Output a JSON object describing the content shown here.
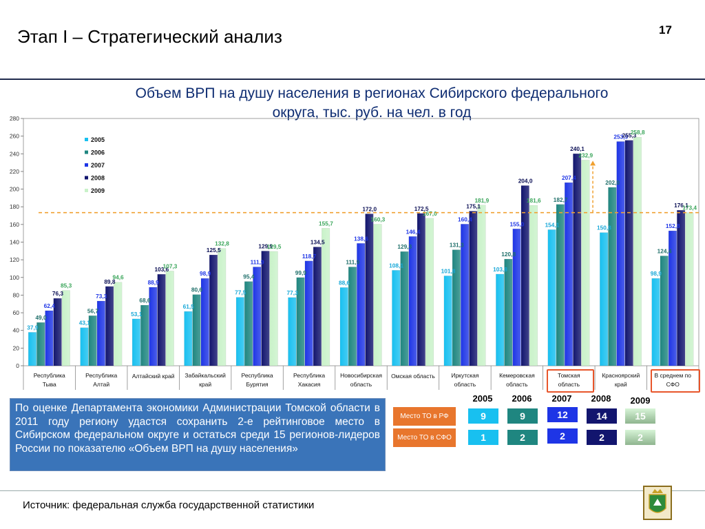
{
  "slide": {
    "title": "Этап I – Стратегический анализ",
    "page_number": "17",
    "source": "Источник: федеральная служба государственной статистики"
  },
  "chart_data": {
    "type": "bar",
    "title_line1": "Объем ВРП на душу населения в регионах Сибирского федерального",
    "title_line2": "округа, тыс. руб. на чел. в год",
    "categories": [
      [
        "Республика",
        "Тыва"
      ],
      [
        "Республика",
        "Алтай"
      ],
      [
        "Алтайский край"
      ],
      [
        "Забайкальский",
        "край"
      ],
      [
        "Республика",
        "Бурятия"
      ],
      [
        "Республика",
        "Хакасия"
      ],
      [
        "Новосибирская",
        "область"
      ],
      [
        "Омская область"
      ],
      [
        "Иркутская",
        "область"
      ],
      [
        "Кемеровская",
        "область"
      ],
      [
        "Томская",
        "область"
      ],
      [
        "Красноярский",
        "край"
      ],
      [
        "В среднем по",
        "СФО"
      ]
    ],
    "series": [
      {
        "name": "2005",
        "color": "#18c0f0",
        "values": [
          37.9,
          43.1,
          53.1,
          61.5,
          77.5,
          77.3,
          88.6,
          108.1,
          101.8,
          103.8,
          154.1,
          150.8,
          98.9
        ]
      },
      {
        "name": "2006",
        "color": "#1f8680",
        "values": [
          49.0,
          56.7,
          68.6,
          80.6,
          95.4,
          99.9,
          111.9,
          129.3,
          131.3,
          120.8,
          182.7,
          202.0,
          124.4
        ]
      },
      {
        "name": "2007",
        "color": "#1e35e6",
        "values": [
          62.4,
          73.3,
          88.9,
          98.9,
          111.9,
          118.7,
          138.6,
          146.4,
          160.4,
          155.0,
          207.4,
          253.9,
          152.8
        ]
      },
      {
        "name": "2008",
        "color": "#12156e",
        "values": [
          76.3,
          89.8,
          103.6,
          125.5,
          129.9,
          134.5,
          172.0,
          172.5,
          175.1,
          204.0,
          240.1,
          255.3,
          176.1
        ]
      },
      {
        "name": "2009",
        "color": "#c9f2c9",
        "values": [
          85.3,
          94.6,
          107.3,
          132.8,
          129.5,
          155.7,
          160.3,
          167.0,
          181.9,
          181.6,
          232.9,
          258.8,
          173.4
        ]
      }
    ],
    "label_colors": [
      "#18a8d8",
      "#1f6f6a",
      "#1e35e6",
      "#0b0f55",
      "#3aa55a"
    ],
    "ylim": [
      0,
      280
    ],
    "yticks": [
      "0",
      "20",
      "40",
      "60",
      "80",
      "100",
      "120",
      "140",
      "160",
      "180",
      "200",
      "220",
      "240",
      "260",
      "280"
    ],
    "reference_line": 173.4,
    "legend": "top-left",
    "highlighted_categories": [
      "Томская область",
      "В среднем по СФО"
    ]
  },
  "info_text": "По оценке Департамента экономики Администрации Томской области в 2011 году региону удастся сохранить 2-е рейтинговое место в Сибирском федеральном округе и остаться среди 15 регионов-лидеров России по показателю «Объем ВРП на душу населения»",
  "ranking": {
    "years": [
      "2005",
      "2006",
      "2007",
      "2008",
      "2009"
    ],
    "rows": [
      {
        "label": "Место ТО в РФ",
        "values": [
          "9",
          "9",
          "12",
          "14",
          "15"
        ]
      },
      {
        "label": "Место ТО в СФО",
        "values": [
          "1",
          "2",
          "2",
          "2",
          "2"
        ]
      }
    ]
  }
}
